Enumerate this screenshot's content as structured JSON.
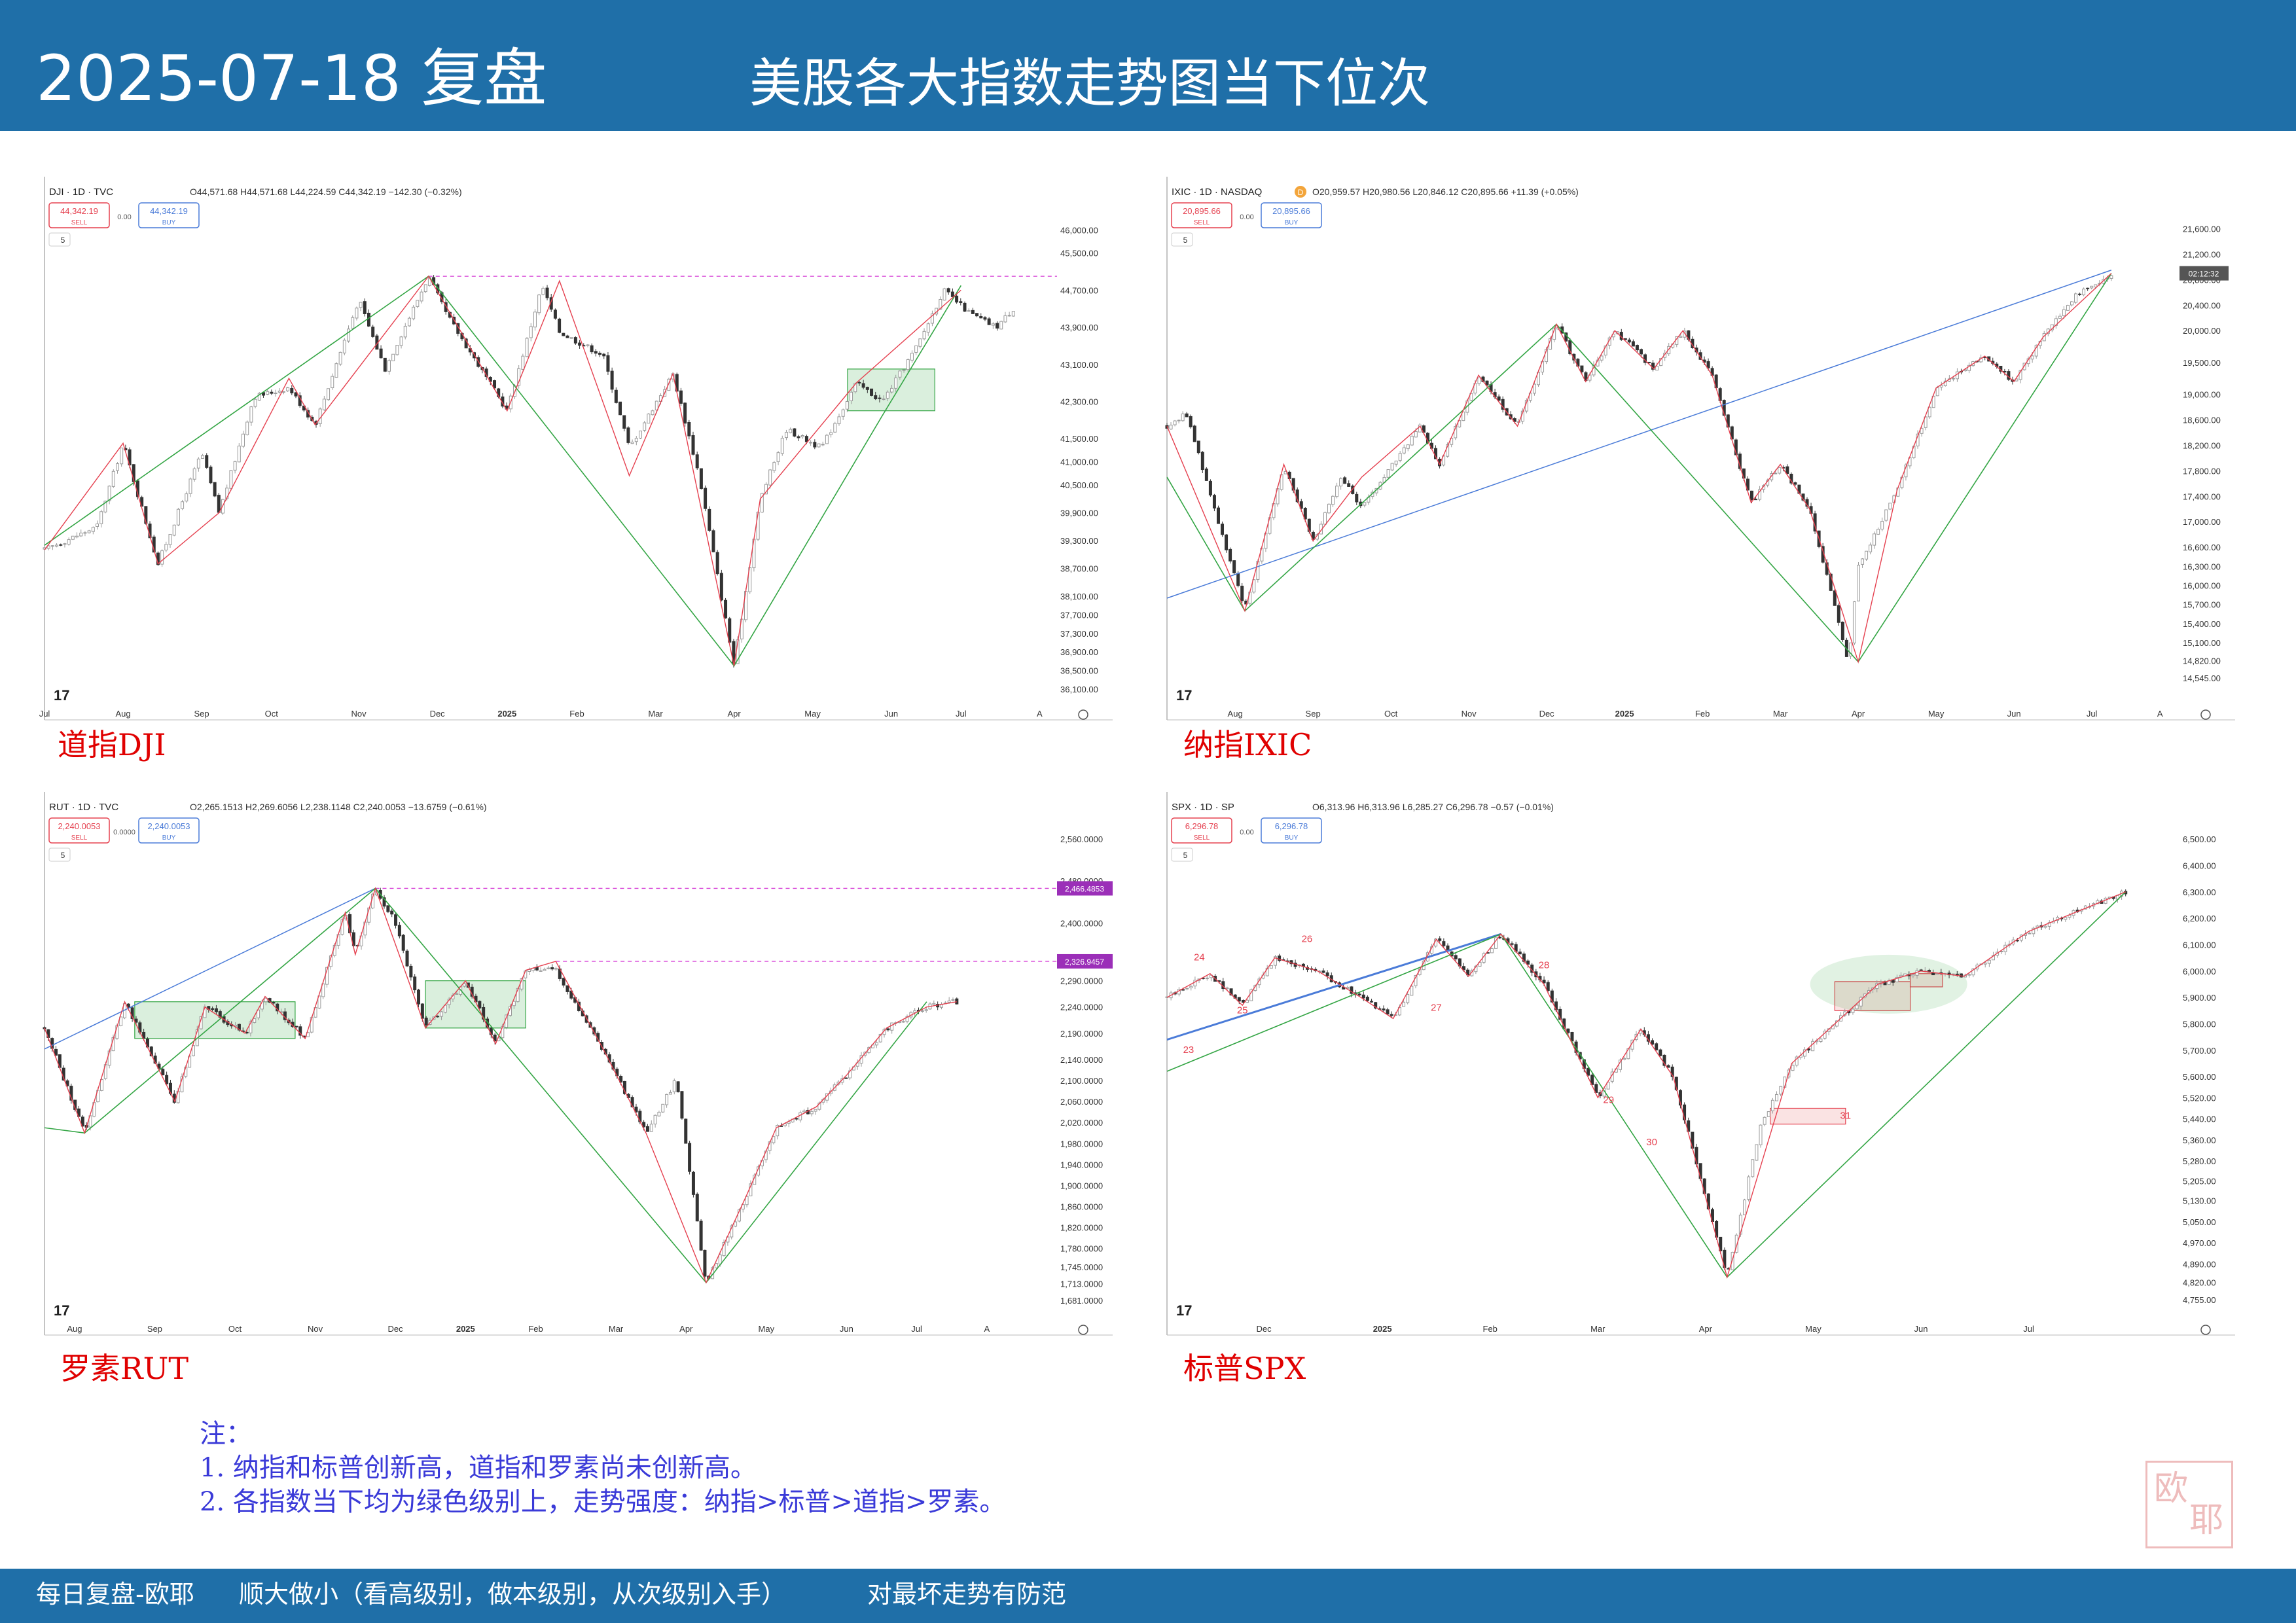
{
  "header": {
    "date": "2025-07-18 复盘",
    "subtitle": "美股各大指数走势图当下位次"
  },
  "colors": {
    "bar": "#1f6fa8",
    "red": "#e5404f",
    "green": "#33a544",
    "blue": "#4a7bd8",
    "pink": "#d63fd6"
  },
  "chart_data": [
    {
      "type": "line",
      "label": "道指DJI",
      "symbol": "DJI · 1D · TVC",
      "ohlc": "O44,571.68 H44,571.68 L44,224.59 C44,342.19 −142.30 (−0.32%)",
      "sell": "44,342.19",
      "buy": "44,342.19",
      "spread": "0.00",
      "sell_label": "SELL",
      "buy_label": "BUY",
      "interval": "5",
      "y_ticks": [
        "46,000.00",
        "45,500.00",
        "44,700.00",
        "43,900.00",
        "43,100.00",
        "42,300.00",
        "41,500.00",
        "41,000.00",
        "40,500.00",
        "39,900.00",
        "39,300.00",
        "38,700.00",
        "38,100.00",
        "37,700.00",
        "37,300.00",
        "36,900.00",
        "36,500.00",
        "36,100.00"
      ],
      "y_values": [
        46000,
        45500,
        44700,
        43900,
        43100,
        42300,
        41500,
        41000,
        40500,
        39900,
        39300,
        38700,
        38100,
        37700,
        37300,
        36900,
        36500,
        36100
      ],
      "x_ticks": [
        "Jul",
        "Aug",
        "Sep",
        "Oct",
        "Nov",
        "Dec",
        "2025",
        "Feb",
        "Mar",
        "Apr",
        "May",
        "Jun",
        "Jul",
        "A"
      ],
      "x_ticks_t": [
        0,
        0.09,
        0.18,
        0.26,
        0.36,
        0.45,
        0.53,
        0.61,
        0.7,
        0.79,
        0.88,
        0.97,
        1.05,
        1.14
      ],
      "x_range": [
        0,
        1.16
      ],
      "y_range": [
        36000,
        46300
      ],
      "price_t": [
        0,
        0.06,
        0.09,
        0.13,
        0.18,
        0.2,
        0.24,
        0.28,
        0.31,
        0.36,
        0.39,
        0.44,
        0.46,
        0.5,
        0.53,
        0.57,
        0.59,
        0.64,
        0.67,
        0.72,
        0.75,
        0.79,
        0.82,
        0.85,
        0.89,
        0.93,
        0.96,
        1.0,
        1.03,
        1.06,
        1.09,
        1.11
      ],
      "price": [
        39100,
        39600,
        41400,
        38800,
        41200,
        39900,
        42400,
        42600,
        41800,
        44500,
        43000,
        45000,
        44200,
        43000,
        42100,
        44800,
        43800,
        43300,
        41300,
        42900,
        40700,
        36600,
        40200,
        41700,
        41300,
        42700,
        42300,
        43500,
        44700,
        44200,
        43900,
        44300
      ],
      "red_path": {
        "t": [
          0,
          0.09,
          0.13,
          0.2,
          0.28,
          0.31,
          0.44,
          0.53,
          0.59,
          0.67,
          0.72,
          0.79,
          0.82,
          0.93,
          1.05
        ],
        "v": [
          39100,
          41400,
          38800,
          39900,
          42800,
          41800,
          45000,
          42100,
          44900,
          40700,
          42900,
          36600,
          40200,
          42700,
          44700
        ]
      },
      "green_path": {
        "t": [
          0,
          0.44,
          0.79,
          0.96,
          1.05
        ],
        "v": [
          39200,
          45000,
          36600,
          42000,
          44800
        ]
      },
      "hline": {
        "value": 45000,
        "t_from": 0.44,
        "t_to": 1.16
      },
      "boxes": [
        {
          "t0": 0.92,
          "t1": 1.02,
          "v0": 42100,
          "v1": 43000
        }
      ]
    },
    {
      "type": "line",
      "label": "纳指IXIC",
      "symbol": "IXIC · 1D · NASDAQ",
      "ohlc": "O20,959.57 H20,980.56 L20,846.12 C20,895.66 +11.39 (+0.05%)",
      "sell": "20,895.66",
      "buy": "20,895.66",
      "spread": "0.00",
      "sell_label": "SELL",
      "buy_label": "BUY",
      "interval": "5",
      "badge": "D",
      "price_label": "02:12:32",
      "y_ticks": [
        "21,600.00",
        "21,200.00",
        "20,800.00",
        "20,400.00",
        "20,000.00",
        "19,500.00",
        "19,000.00",
        "18,600.00",
        "18,200.00",
        "17,800.00",
        "17,400.00",
        "17,000.00",
        "16,600.00",
        "16,300.00",
        "16,000.00",
        "15,700.00",
        "15,400.00",
        "15,100.00",
        "14,820.00",
        "14,545.00"
      ],
      "y_values": [
        21600,
        21200,
        20800,
        20400,
        20000,
        19500,
        19000,
        18600,
        18200,
        17800,
        17400,
        17000,
        16600,
        16300,
        16000,
        15700,
        15400,
        15100,
        14820,
        14545
      ],
      "x_ticks": [
        "Aug",
        "Sep",
        "Oct",
        "Nov",
        "Dec",
        "2025",
        "Feb",
        "Mar",
        "Apr",
        "May",
        "Jun",
        "Jul",
        "A"
      ],
      "x_ticks_t": [
        0.07,
        0.15,
        0.23,
        0.31,
        0.39,
        0.47,
        0.55,
        0.63,
        0.71,
        0.79,
        0.87,
        0.95,
        1.02
      ],
      "x_range": [
        0,
        1.04
      ],
      "y_range": [
        14300,
        21800
      ],
      "price_t": [
        0,
        0.02,
        0.08,
        0.12,
        0.15,
        0.18,
        0.2,
        0.26,
        0.28,
        0.32,
        0.36,
        0.4,
        0.43,
        0.46,
        0.5,
        0.53,
        0.56,
        0.6,
        0.63,
        0.66,
        0.7,
        0.71,
        0.75,
        0.79,
        0.84,
        0.87,
        0.9,
        0.93,
        0.97
      ],
      "price": [
        18500,
        18700,
        15600,
        17900,
        16700,
        17700,
        17200,
        18500,
        17900,
        19300,
        18500,
        20100,
        19200,
        20000,
        19400,
        20000,
        19300,
        17300,
        17900,
        17200,
        14800,
        16300,
        17500,
        19100,
        19600,
        19200,
        19900,
        20500,
        20900
      ],
      "red_path": {
        "t": [
          0,
          0.08,
          0.12,
          0.15,
          0.2,
          0.26,
          0.28,
          0.32,
          0.36,
          0.4,
          0.43,
          0.46,
          0.5,
          0.53,
          0.56,
          0.6,
          0.63,
          0.66,
          0.71,
          0.75,
          0.79,
          0.84,
          0.87,
          0.9,
          0.97
        ],
        "v": [
          18500,
          15600,
          17900,
          16700,
          17700,
          18500,
          17900,
          19300,
          18500,
          20100,
          19200,
          20000,
          19400,
          20000,
          19300,
          17300,
          17900,
          17200,
          14800,
          17500,
          19100,
          19600,
          19200,
          19900,
          20900
        ]
      },
      "green_path": {
        "t": [
          0,
          0.08,
          0.4,
          0.71,
          0.97
        ],
        "v": [
          17700,
          15600,
          20100,
          14800,
          20900
        ]
      },
      "blue_path": {
        "t": [
          0,
          0.97
        ],
        "v": [
          15800,
          20950
        ]
      },
      "boxes": []
    },
    {
      "type": "line",
      "label": "罗素RUT",
      "symbol": "RUT · 1D · TVC",
      "ohlc": "O2,265.1513 H2,269.6056 L2,238.1148 C2,240.0053 −13.6759 (−0.61%)",
      "sell": "2,240.0053",
      "buy": "2,240.0053",
      "spread": "0.0000",
      "sell_label": "SELL",
      "buy_label": "BUY",
      "interval": "5",
      "tags": [
        "2,466.4853",
        "2,326.9457"
      ],
      "y_ticks": [
        "2,560.0000",
        "2,480.0000",
        "2,400.0000",
        "2,290.0000",
        "2,240.0000",
        "2,190.0000",
        "2,140.0000",
        "2,100.0000",
        "2,060.0000",
        "2,020.0000",
        "1,980.0000",
        "1,940.0000",
        "1,900.0000",
        "1,860.0000",
        "1,820.0000",
        "1,780.0000",
        "1,745.0000",
        "1,713.0000",
        "1,681.0000"
      ],
      "y_values": [
        2560,
        2480,
        2400,
        2290,
        2240,
        2190,
        2140,
        2100,
        2060,
        2020,
        1980,
        1940,
        1900,
        1860,
        1820,
        1780,
        1745,
        1713,
        1681
      ],
      "x_ticks": [
        "Aug",
        "Sep",
        "Oct",
        "Nov",
        "Dec",
        "2025",
        "Feb",
        "Mar",
        "Apr",
        "May",
        "Jun",
        "Jul",
        "A"
      ],
      "x_ticks_t": [
        0.03,
        0.11,
        0.19,
        0.27,
        0.35,
        0.42,
        0.49,
        0.57,
        0.64,
        0.72,
        0.8,
        0.87,
        0.94
      ],
      "x_range": [
        0,
        1.01
      ],
      "y_range": [
        1665,
        2575
      ],
      "price_t": [
        0,
        0.04,
        0.08,
        0.13,
        0.16,
        0.2,
        0.22,
        0.26,
        0.3,
        0.31,
        0.33,
        0.35,
        0.38,
        0.42,
        0.45,
        0.48,
        0.51,
        0.56,
        0.6,
        0.63,
        0.66,
        0.7,
        0.73,
        0.77,
        0.8,
        0.84,
        0.88,
        0.91
      ],
      "price": [
        2200,
        2000,
        2250,
        2060,
        2240,
        2190,
        2260,
        2180,
        2420,
        2340,
        2466,
        2400,
        2200,
        2290,
        2170,
        2310,
        2310,
        2150,
        2000,
        2100,
        1715,
        1880,
        2010,
        2050,
        2110,
        2200,
        2240,
        2250
      ],
      "red_path": {
        "t": [
          0,
          0.04,
          0.08,
          0.13,
          0.16,
          0.2,
          0.22,
          0.26,
          0.3,
          0.31,
          0.33,
          0.38,
          0.42,
          0.45,
          0.48,
          0.51,
          0.56,
          0.6,
          0.66,
          0.7,
          0.73,
          0.77,
          0.8,
          0.84,
          0.88,
          0.91
        ],
        "v": [
          2200,
          2000,
          2250,
          2060,
          2240,
          2190,
          2260,
          2180,
          2420,
          2340,
          2466,
          2200,
          2290,
          2170,
          2310,
          2327,
          2150,
          2000,
          1715,
          1880,
          2010,
          2050,
          2110,
          2200,
          2240,
          2250
        ]
      },
      "green_path": {
        "t": [
          0,
          0.04,
          0.33,
          0.66,
          0.88
        ],
        "v": [
          2010,
          2000,
          2466,
          1715,
          2250
        ]
      },
      "blue_path": {
        "t": [
          0,
          0.33
        ],
        "v": [
          2160,
          2466
        ]
      },
      "hlines": [
        {
          "value": 2466,
          "t_from": 0.33,
          "t_to": 1.01
        },
        {
          "value": 2327,
          "t_from": 0.51,
          "t_to": 1.01
        }
      ],
      "boxes": [
        {
          "t0": 0.09,
          "t1": 0.25,
          "v0": 2180,
          "v1": 2250
        },
        {
          "t0": 0.38,
          "t1": 0.48,
          "v0": 2200,
          "v1": 2290
        }
      ]
    },
    {
      "type": "line",
      "label": "标普SPX",
      "symbol": "SPX · 1D · SP",
      "ohlc": "O6,313.96 H6,313.96 L6,285.27 C6,296.78 −0.57 (−0.01%)",
      "sell": "6,296.78",
      "buy": "6,296.78",
      "spread": "0.00",
      "sell_label": "SELL",
      "buy_label": "BUY",
      "interval": "5",
      "y_ticks": [
        "6,500.00",
        "6,400.00",
        "6,300.00",
        "6,200.00",
        "6,100.00",
        "6,000.00",
        "5,900.00",
        "5,800.00",
        "5,700.00",
        "5,600.00",
        "5,520.00",
        "5,440.00",
        "5,360.00",
        "5,280.00",
        "5,205.00",
        "5,130.00",
        "5,050.00",
        "4,970.00",
        "4,890.00",
        "4,820.00",
        "4,755.00"
      ],
      "y_values": [
        6500,
        6400,
        6300,
        6200,
        6100,
        6000,
        5900,
        5800,
        5700,
        5600,
        5520,
        5440,
        5360,
        5280,
        5205,
        5130,
        5050,
        4970,
        4890,
        4820,
        4755
      ],
      "x_ticks": [
        "Dec",
        "2025",
        "Feb",
        "Mar",
        "Apr",
        "May",
        "Jun",
        "Jul"
      ],
      "x_ticks_t": [
        0.09,
        0.2,
        0.3,
        0.4,
        0.5,
        0.6,
        0.7,
        0.8
      ],
      "x_range": [
        0,
        0.94
      ],
      "y_range": [
        4720,
        6530
      ],
      "price_t": [
        0,
        0.04,
        0.07,
        0.1,
        0.14,
        0.18,
        0.21,
        0.25,
        0.28,
        0.31,
        0.35,
        0.4,
        0.44,
        0.47,
        0.52,
        0.55,
        0.58,
        0.62,
        0.66,
        0.7,
        0.74,
        0.8,
        0.86,
        0.89
      ],
      "price": [
        5900,
        5990,
        5870,
        6050,
        6000,
        5900,
        5820,
        6120,
        5980,
        6140,
        5950,
        5520,
        5780,
        5600,
        4840,
        5400,
        5650,
        5800,
        5950,
        6000,
        5980,
        6150,
        6250,
        6300
      ],
      "red_path": {
        "t": [
          0,
          0.04,
          0.07,
          0.1,
          0.14,
          0.18,
          0.21,
          0.25,
          0.28,
          0.31,
          0.35,
          0.4,
          0.44,
          0.47,
          0.52,
          0.58,
          0.62,
          0.66,
          0.7,
          0.74,
          0.8,
          0.86,
          0.89
        ],
        "v": [
          5900,
          5990,
          5870,
          6050,
          6000,
          5900,
          5820,
          6120,
          5980,
          6140,
          5950,
          5520,
          5780,
          5600,
          4840,
          5650,
          5800,
          5950,
          6000,
          5980,
          6150,
          6250,
          6300
        ]
      },
      "green_path": {
        "t": [
          0,
          0.31,
          0.52,
          0.89
        ],
        "v": [
          5620,
          6140,
          4840,
          6300
        ]
      },
      "blue_path": {
        "t": [
          0,
          0.31
        ],
        "v": [
          5740,
          6140
        ]
      },
      "wave_labels": [
        "24",
        "23",
        "25",
        "26",
        "27",
        "28",
        "29",
        "30",
        "31"
      ],
      "wave_t": [
        0.03,
        0.02,
        0.07,
        0.13,
        0.25,
        0.35,
        0.41,
        0.45,
        0.63
      ],
      "wave_v": [
        6040,
        5690,
        5840,
        6110,
        5850,
        6010,
        5500,
        5340,
        5440
      ],
      "boxes": [
        {
          "t0": 0.56,
          "t1": 0.63,
          "v0": 5420,
          "v1": 5480
        },
        {
          "t0": 0.62,
          "t1": 0.69,
          "v0": 5850,
          "v1": 5960
        },
        {
          "t0": 0.69,
          "t1": 0.72,
          "v0": 5940,
          "v1": 5990
        }
      ],
      "ellipse": {
        "t": 0.67,
        "v": 5950
      }
    }
  ],
  "notes": {
    "title": "注：",
    "line1": "1. 纳指和标普创新高，道指和罗素尚未创新高。",
    "line2": "2. 各指数当下均为绿色级别上，走势强度：纳指>标普>道指>罗素。"
  },
  "footer": {
    "left": "每日复盘-欧耶",
    "mid": "顺大做小（看高级别，做本级别，从次级别入手）",
    "right": "对最坏走势有防范"
  },
  "seal_text": "欧耶"
}
